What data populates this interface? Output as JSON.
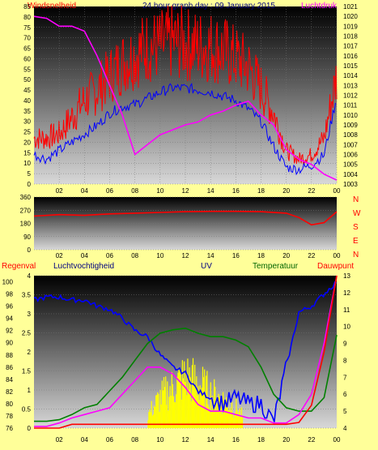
{
  "colors": {
    "wind": "#ff0000",
    "baro": "#ff00ff",
    "hum": "#0000ff",
    "temp": "#008000",
    "dew": "#ff0000",
    "uv": "#ffff00",
    "rain": "#ff0000"
  },
  "panel1": {
    "title_left": "Windsnelheid",
    "title_center": "24 hour graph day : 09 January 2015",
    "title_right": "Luchtdruk",
    "left_ticks": [
      "85",
      "80",
      "75",
      "70",
      "65",
      "60",
      "55",
      "50",
      "45",
      "40",
      "35",
      "30",
      "25",
      "20",
      "15",
      "10",
      "5",
      "0"
    ],
    "right_ticks": [
      "1021",
      "1020",
      "1019",
      "1018",
      "1017",
      "1016",
      "1015",
      "1014",
      "1013",
      "1012",
      "1011",
      "1010",
      "1009",
      "1008",
      "1007",
      "1006",
      "1005",
      "1004",
      "1003"
    ],
    "x_ticks": [
      "02",
      "04",
      "06",
      "08",
      "10",
      "12",
      "14",
      "16",
      "18",
      "20",
      "22",
      "00"
    ]
  },
  "panel2": {
    "left_ticks": [
      "360",
      "270",
      "180",
      "90",
      "0"
    ],
    "right_letters": [
      "N",
      "W",
      "S",
      "E",
      "N"
    ],
    "x_ticks": [
      "02",
      "04",
      "06",
      "08",
      "10",
      "12",
      "14",
      "16",
      "18",
      "20",
      "22",
      "00"
    ]
  },
  "panel3": {
    "labels": {
      "rain": "Regenval",
      "hum": "Luchtvochtigheid",
      "uv": "UV",
      "temp": "Temperatuur",
      "dew": "Dauwpunt"
    },
    "rain_ticks": [
      "4",
      "3.5",
      "3",
      "2.5",
      "2",
      "1.5",
      "1",
      "0.5",
      "0"
    ],
    "hum_ticks": [
      "100",
      "98",
      "96",
      "94",
      "92",
      "90",
      "88",
      "86",
      "84",
      "82",
      "80",
      "78",
      "76"
    ],
    "temp_ticks": [
      "13",
      "12",
      "11",
      "10",
      "9",
      "8",
      "7",
      "6",
      "5",
      "4"
    ],
    "x_ticks": [
      "02",
      "04",
      "06",
      "08",
      "10",
      "12",
      "14",
      "16",
      "18",
      "20",
      "22",
      "00"
    ]
  },
  "chart_data": [
    {
      "type": "line",
      "title": "24 hour graph day : 09 January 2015",
      "ylim": [
        0,
        85
      ],
      "y2lim": [
        1003,
        1021
      ],
      "x_hours": [
        0,
        1,
        2,
        3,
        4,
        5,
        6,
        7,
        8,
        9,
        10,
        11,
        12,
        13,
        14,
        15,
        16,
        17,
        18,
        19,
        20,
        21,
        22,
        23,
        24
      ],
      "series": [
        {
          "name": "Windsnelheid",
          "axis": "left",
          "values": [
            22,
            22,
            24,
            32,
            40,
            45,
            52,
            58,
            62,
            66,
            66,
            68,
            67,
            66,
            66,
            64,
            60,
            56,
            46,
            34,
            16,
            12,
            14,
            22,
            52
          ]
        },
        {
          "name": "Windsnelheid-avg",
          "axis": "left",
          "values": [
            14,
            12,
            16,
            20,
            24,
            28,
            34,
            37,
            38,
            41,
            44,
            46,
            46,
            45,
            44,
            42,
            40,
            36,
            30,
            18,
            8,
            7,
            9,
            14,
            42
          ]
        },
        {
          "name": "Luchtdruk",
          "axis": "right",
          "values": [
            1020,
            1019.8,
            1019,
            1019,
            1018.5,
            1016,
            1013,
            1010,
            1006,
            1007,
            1008,
            1008.5,
            1009,
            1009.3,
            1010,
            1010.4,
            1011,
            1011.4,
            1010,
            1009,
            1006.5,
            1005.5,
            1005,
            1004,
            1003.4
          ]
        }
      ]
    },
    {
      "type": "line",
      "ylim": [
        0,
        360
      ],
      "x_hours": [
        0,
        2,
        4,
        6,
        8,
        10,
        12,
        14,
        16,
        18,
        20,
        21,
        22,
        23,
        24
      ],
      "series": [
        {
          "name": "Windrichting",
          "values": [
            230,
            240,
            235,
            245,
            250,
            255,
            260,
            262,
            262,
            260,
            250,
            220,
            170,
            185,
            260
          ]
        }
      ]
    },
    {
      "type": "line",
      "x_hours": [
        0,
        1,
        2,
        3,
        4,
        5,
        6,
        7,
        8,
        9,
        10,
        11,
        12,
        13,
        14,
        15,
        16,
        17,
        18,
        19,
        20,
        21,
        22,
        23,
        24
      ],
      "series": [
        {
          "name": "Luchtvochtigheid",
          "axis": "hum",
          "ylim": [
            76,
            101
          ],
          "values": [
            97,
            97.5,
            97.5,
            97,
            97,
            96,
            95.5,
            94,
            92,
            91,
            88,
            86,
            85,
            82,
            81,
            80,
            81,
            80,
            80,
            77,
            86,
            95,
            96,
            98,
            100
          ]
        },
        {
          "name": "Temperatuur",
          "axis": "temp",
          "ylim": [
            4,
            13
          ],
          "values": [
            4.4,
            4.4,
            4.5,
            4.8,
            5.2,
            5.4,
            6.2,
            7,
            8,
            9,
            9.6,
            9.8,
            9.9,
            9.6,
            9.4,
            9.4,
            9.2,
            8.8,
            7.6,
            6,
            5.2,
            5,
            5,
            5.8,
            9.5
          ]
        },
        {
          "name": "Dauwpunt",
          "axis": "temp",
          "ylim": [
            4,
            13
          ],
          "values": [
            4.1,
            4.1,
            4.3,
            4.6,
            4.8,
            5,
            5.2,
            6,
            6.8,
            7.6,
            7.6,
            7.2,
            6.4,
            5.4,
            5,
            5,
            4.8,
            4.6,
            4.6,
            4.3,
            4.3,
            4.8,
            6,
            9,
            13
          ]
        },
        {
          "name": "UV",
          "axis": "rain",
          "ylim": [
            0,
            4
          ],
          "values": [
            0,
            0,
            0,
            0,
            0,
            0,
            0,
            0,
            0,
            0.4,
            0.9,
            1.2,
            1.5,
            1.3,
            1.0,
            0.8,
            0.6,
            0.1,
            0,
            0,
            0,
            0,
            0,
            0,
            0
          ]
        },
        {
          "name": "Regenval",
          "axis": "rain",
          "ylim": [
            0,
            4
          ],
          "values": [
            0,
            0,
            0,
            0.1,
            0.1,
            0.1,
            0.1,
            0.1,
            0.1,
            0.1,
            0.1,
            0.1,
            0.1,
            0.1,
            0.1,
            0.1,
            0.1,
            0.1,
            0.1,
            0.1,
            0.1,
            0.15,
            0.6,
            2.0,
            4.0
          ]
        }
      ]
    }
  ]
}
